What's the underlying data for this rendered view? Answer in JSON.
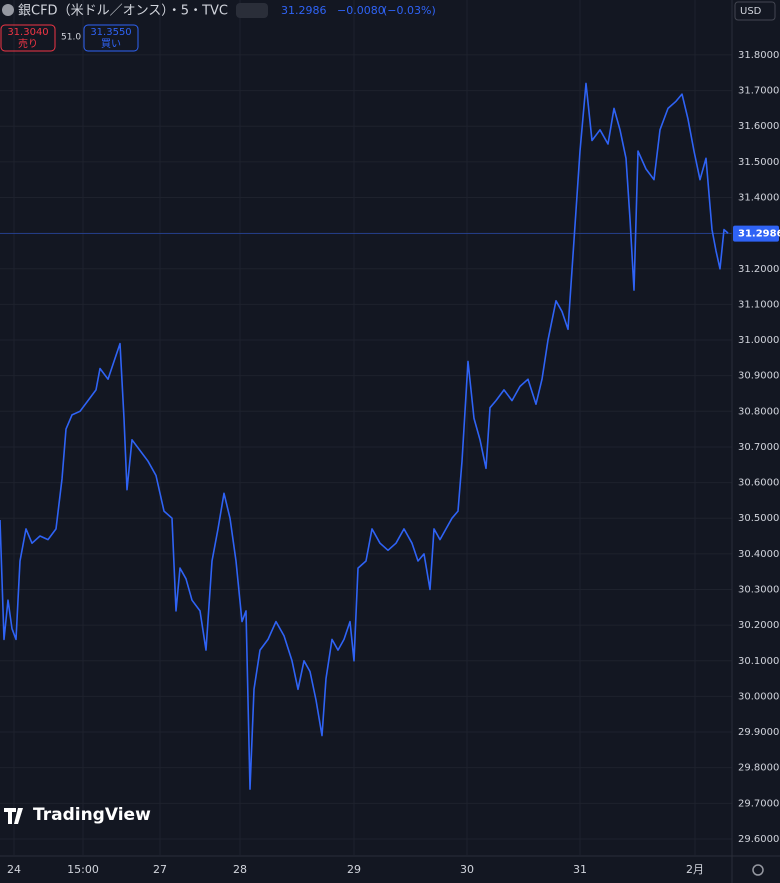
{
  "header": {
    "symbol": "銀CFD（米ドル／オンス）・5・TVC",
    "change": "−0.0080",
    "change_pct": "(−0.03%)",
    "currency": "USD",
    "sell": {
      "price": "31.3040",
      "label": "売り"
    },
    "spread": "51.0",
    "buy": {
      "price": "31.3550",
      "label": "買い"
    }
  },
  "brand": "TradingView",
  "chart_data": {
    "type": "line",
    "color": "#2f63f5",
    "grid": true,
    "last_value": 31.2986,
    "series": [
      {
        "name": "銀CFD",
        "color": "#2f63f5",
        "x": [
          0,
          4,
          8,
          12,
          16,
          20,
          26,
          32,
          40,
          48,
          56,
          62,
          66,
          72,
          80,
          88,
          96,
          100,
          108,
          114,
          120,
          124,
          127,
          132,
          140,
          148,
          156,
          164,
          172,
          176,
          180,
          186,
          192,
          200,
          206,
          212,
          218,
          224,
          230,
          236,
          242,
          246,
          250,
          254,
          260,
          268,
          276,
          284,
          292,
          298,
          304,
          310,
          316,
          322,
          326,
          332,
          338,
          344,
          350,
          354,
          358,
          366,
          372,
          380,
          388,
          396,
          404,
          412,
          418,
          424,
          430,
          434,
          440,
          446,
          452,
          458,
          462,
          468,
          474,
          480,
          486,
          490,
          496,
          504,
          512,
          520,
          528,
          536,
          542,
          548,
          556,
          562,
          568,
          574,
          580,
          586,
          592,
          600,
          608,
          614,
          620,
          626,
          630,
          634,
          638,
          646,
          654,
          660,
          668,
          676,
          682,
          688,
          694,
          700,
          706,
          712,
          716,
          720,
          724,
          728
        ],
        "values": [
          30.495,
          30.16,
          30.27,
          30.19,
          30.16,
          30.38,
          30.47,
          30.43,
          30.45,
          30.44,
          30.47,
          30.61,
          30.75,
          30.79,
          30.8,
          30.83,
          30.86,
          30.92,
          30.89,
          30.94,
          30.99,
          30.78,
          30.58,
          30.72,
          30.69,
          30.66,
          30.62,
          30.52,
          30.5,
          30.24,
          30.36,
          30.33,
          30.27,
          30.24,
          30.13,
          30.38,
          30.47,
          30.57,
          30.5,
          30.38,
          30.21,
          30.24,
          29.74,
          30.02,
          30.13,
          30.16,
          30.21,
          30.17,
          30.1,
          30.02,
          30.1,
          30.07,
          29.99,
          29.89,
          30.05,
          30.16,
          30.13,
          30.16,
          30.21,
          30.1,
          30.36,
          30.38,
          30.47,
          30.43,
          30.41,
          30.43,
          30.47,
          30.43,
          30.38,
          30.4,
          30.3,
          30.47,
          30.44,
          30.47,
          30.5,
          30.52,
          30.66,
          30.94,
          30.78,
          30.72,
          30.64,
          30.81,
          30.83,
          30.86,
          30.83,
          30.87,
          30.89,
          30.82,
          30.89,
          31.0,
          31.11,
          31.08,
          31.03,
          31.28,
          31.53,
          31.72,
          31.56,
          31.59,
          31.55,
          31.65,
          31.59,
          31.51,
          31.34,
          31.14,
          31.53,
          31.48,
          31.45,
          31.59,
          31.65,
          31.67,
          31.69,
          31.62,
          31.53,
          31.45,
          31.51,
          31.31,
          31.25,
          31.2,
          31.31,
          31.3
        ]
      }
    ],
    "xlim": [
      0,
      732
    ],
    "xticks": [
      {
        "value": 14,
        "label": "24"
      },
      {
        "value": 83,
        "label": "15:00"
      },
      {
        "value": 160,
        "label": "27"
      },
      {
        "value": 240,
        "label": "28"
      },
      {
        "value": 354,
        "label": "29"
      },
      {
        "value": 467,
        "label": "30"
      },
      {
        "value": 580,
        "label": "31"
      },
      {
        "value": 695,
        "label": "2月"
      }
    ],
    "ylim": [
      29.555,
      31.898
    ],
    "yticks": [
      {
        "value": 29.6,
        "label": "29.6000"
      },
      {
        "value": 29.7,
        "label": "29.7000"
      },
      {
        "value": 29.8,
        "label": "29.8000"
      },
      {
        "value": 29.9,
        "label": "29.9000"
      },
      {
        "value": 30.0,
        "label": "30.0000"
      },
      {
        "value": 30.1,
        "label": "30.1000"
      },
      {
        "value": 30.2,
        "label": "30.2000"
      },
      {
        "value": 30.3,
        "label": "30.3000"
      },
      {
        "value": 30.4,
        "label": "30.4000"
      },
      {
        "value": 30.5,
        "label": "30.5000"
      },
      {
        "value": 30.6,
        "label": "30.6000"
      },
      {
        "value": 30.7,
        "label": "30.7000"
      },
      {
        "value": 30.8,
        "label": "30.8000"
      },
      {
        "value": 30.9,
        "label": "30.9000"
      },
      {
        "value": 31.0,
        "label": "31.0000"
      },
      {
        "value": 31.1,
        "label": "31.1000"
      },
      {
        "value": 31.2,
        "label": "31.2000"
      },
      {
        "value": 31.3,
        "label": "31.3000"
      },
      {
        "value": 31.4,
        "label": "31.4000"
      },
      {
        "value": 31.5,
        "label": "31.5000"
      },
      {
        "value": 31.6,
        "label": "31.6000"
      },
      {
        "value": 31.7,
        "label": "31.7000"
      },
      {
        "value": 31.8,
        "label": "31.8000"
      }
    ]
  }
}
